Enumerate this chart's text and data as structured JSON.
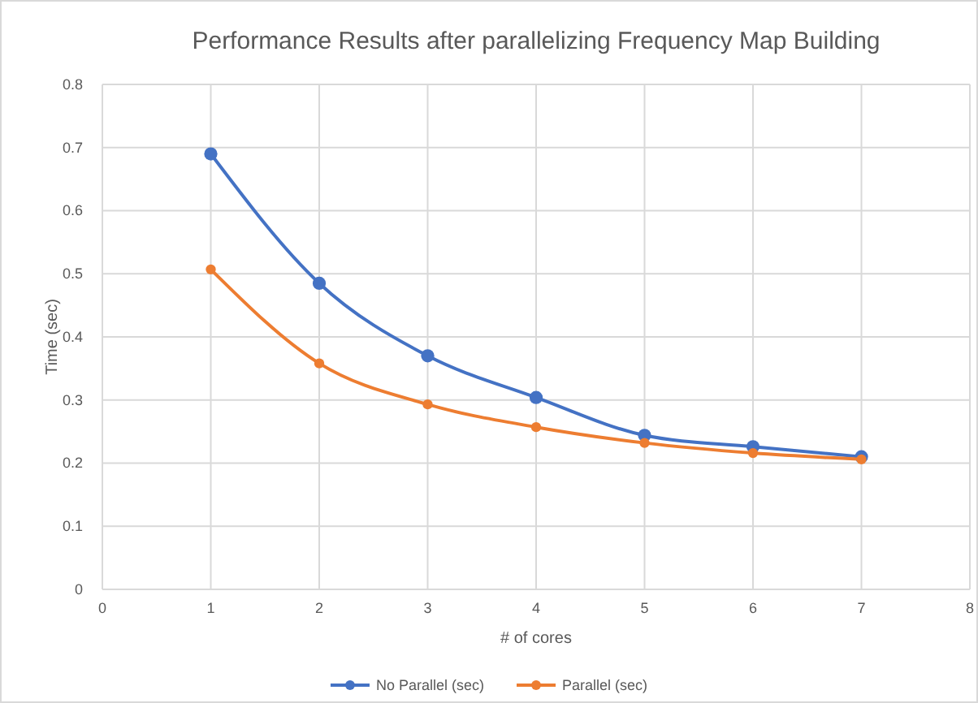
{
  "chart_data": {
    "type": "line",
    "title": "Performance Results after parallelizing Frequency Map Building",
    "xlabel": "# of cores",
    "ylabel": "Time (sec)",
    "x": [
      1,
      2,
      3,
      4,
      5,
      6,
      7
    ],
    "series": [
      {
        "name": "No Parallel (sec)",
        "color": "#4472c4",
        "values": [
          0.69,
          0.485,
          0.37,
          0.304,
          0.244,
          0.226,
          0.21
        ]
      },
      {
        "name": "Parallel (sec)",
        "color": "#ed7d31",
        "values": [
          0.507,
          0.358,
          0.293,
          0.257,
          0.232,
          0.216,
          0.206
        ]
      }
    ],
    "xlim": [
      0,
      8
    ],
    "xticks": [
      0,
      1,
      2,
      3,
      4,
      5,
      6,
      7,
      8
    ],
    "ylim": [
      0,
      0.8
    ],
    "yticks": [
      0,
      0.1,
      0.2,
      0.3,
      0.4,
      0.5,
      0.6,
      0.7,
      0.8
    ],
    "grid": true,
    "legend": "bottom",
    "marker": "circle",
    "line_style": "solid"
  }
}
